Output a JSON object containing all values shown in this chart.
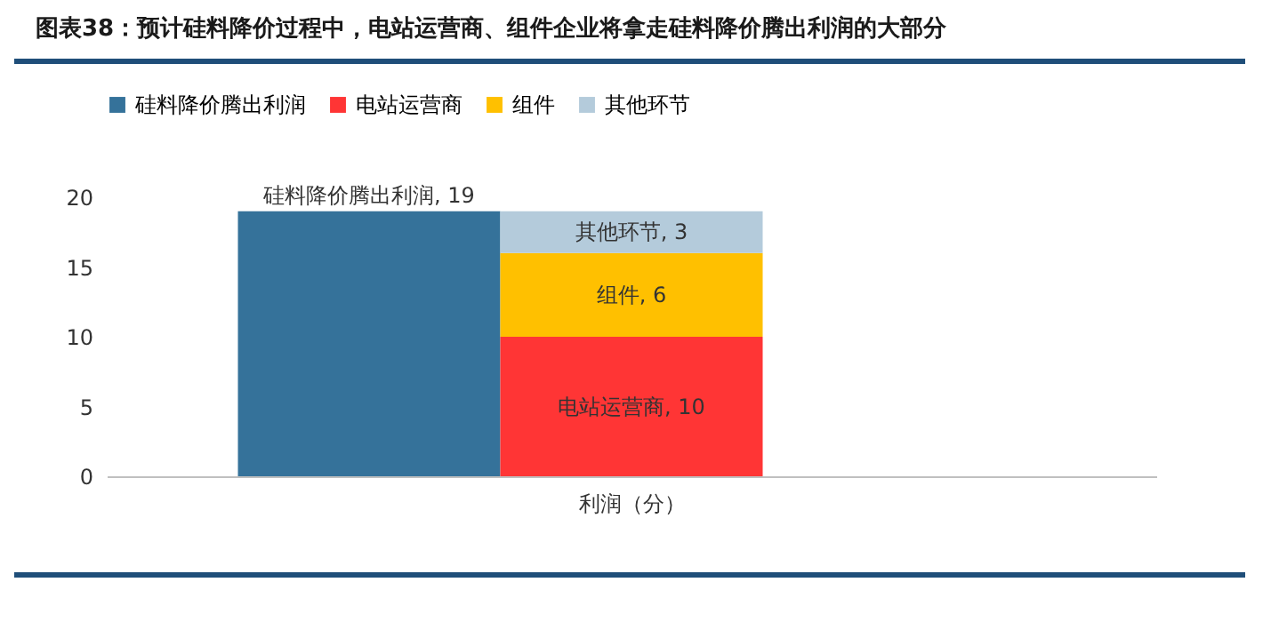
{
  "chart_data": {
    "type": "bar",
    "title": "图表38：预计硅料降价过程中，电站运营商、组件企业将拿走硅料降价腾出利润的大部分",
    "xlabel": "利润（分）",
    "categories": [
      null,
      null
    ],
    "stacked": true,
    "legend": "top",
    "grid": false,
    "ylim": [
      0,
      20
    ],
    "yticks": [
      0,
      5,
      10,
      15,
      20
    ],
    "series": [
      {
        "name": "硅料降价腾出利润",
        "color": "#35729a",
        "values": [
          19,
          null
        ],
        "value_labels": [
          "硅料降价腾出利润, 19",
          null
        ]
      },
      {
        "name": "电站运营商",
        "color": "#ff3535",
        "values": [
          null,
          10
        ],
        "value_labels": [
          null,
          "电站运营商, 10"
        ]
      },
      {
        "name": "组件",
        "color": "#ffc000",
        "values": [
          null,
          6
        ],
        "value_labels": [
          null,
          "组件, 6"
        ]
      },
      {
        "name": "其他环节",
        "color": "#b4cbdb",
        "values": [
          null,
          3
        ],
        "value_labels": [
          null,
          "其他环节, 3"
        ]
      }
    ]
  }
}
